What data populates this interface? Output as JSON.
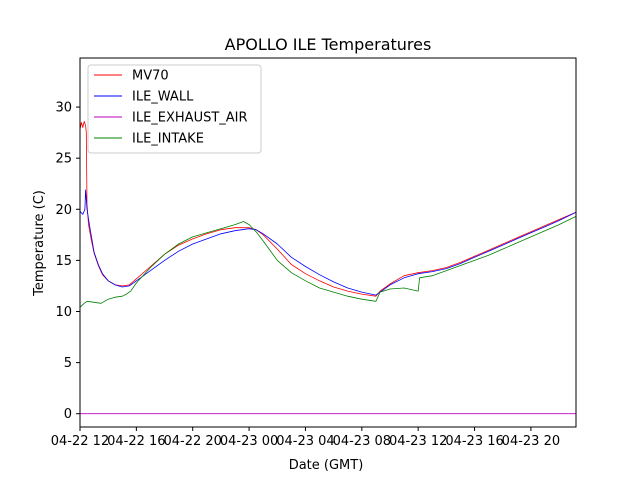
{
  "chart_data": {
    "type": "line",
    "title": "APOLLO ILE Temperatures",
    "xlabel": "Date (GMT)",
    "ylabel": "Temperature (C)",
    "x_unit": "hours since 04-22 12:00 GMT",
    "xlim": [
      0,
      35.2
    ],
    "ylim": [
      -1.3,
      34.8
    ],
    "grid": false,
    "legend_position": "upper-left",
    "x_ticks": [
      {
        "value": 0,
        "label": "04-22 12"
      },
      {
        "value": 4,
        "label": "04-22 16"
      },
      {
        "value": 8,
        "label": "04-22 20"
      },
      {
        "value": 12,
        "label": "04-23 00"
      },
      {
        "value": 16,
        "label": "04-23 04"
      },
      {
        "value": 20,
        "label": "04-23 08"
      },
      {
        "value": 24,
        "label": "04-23 12"
      },
      {
        "value": 28,
        "label": "04-23 16"
      },
      {
        "value": 32,
        "label": "04-23 20"
      }
    ],
    "y_ticks": [
      {
        "value": 0,
        "label": "0"
      },
      {
        "value": 5,
        "label": "5"
      },
      {
        "value": 10,
        "label": "10"
      },
      {
        "value": 15,
        "label": "15"
      },
      {
        "value": 20,
        "label": "20"
      },
      {
        "value": 25,
        "label": "25"
      },
      {
        "value": 30,
        "label": "30"
      }
    ],
    "series": [
      {
        "name": "MV70",
        "color": "#ff0000",
        "points": [
          [
            0,
            27.8
          ],
          [
            0.1,
            28.5
          ],
          [
            0.2,
            28.0
          ],
          [
            0.3,
            28.6
          ],
          [
            0.4,
            28.2
          ],
          [
            0.45,
            27.5
          ],
          [
            0.5,
            20.5
          ],
          [
            0.6,
            18.5
          ],
          [
            0.8,
            17.0
          ],
          [
            1.0,
            15.7
          ],
          [
            1.3,
            14.5
          ],
          [
            1.6,
            13.6
          ],
          [
            2,
            13.0
          ],
          [
            2.5,
            12.6
          ],
          [
            3,
            12.5
          ],
          [
            3.5,
            12.6
          ],
          [
            4,
            13.2
          ],
          [
            5,
            14.4
          ],
          [
            6,
            15.6
          ],
          [
            7,
            16.5
          ],
          [
            8,
            17.1
          ],
          [
            9,
            17.6
          ],
          [
            10,
            18.0
          ],
          [
            11,
            18.2
          ],
          [
            12,
            18.2
          ],
          [
            12.5,
            18.0
          ],
          [
            13,
            17.5
          ],
          [
            14,
            16.1
          ],
          [
            15,
            14.6
          ],
          [
            16,
            13.7
          ],
          [
            17,
            13.0
          ],
          [
            18,
            12.4
          ],
          [
            19,
            12.0
          ],
          [
            20,
            11.7
          ],
          [
            21,
            11.5
          ],
          [
            21.3,
            12.0
          ],
          [
            22,
            12.7
          ],
          [
            23,
            13.5
          ],
          [
            24,
            13.8
          ],
          [
            25,
            14.0
          ],
          [
            26,
            14.3
          ],
          [
            27,
            14.8
          ],
          [
            28,
            15.4
          ],
          [
            29,
            16.0
          ],
          [
            30,
            16.6
          ],
          [
            31,
            17.2
          ],
          [
            32,
            17.8
          ],
          [
            33,
            18.4
          ],
          [
            34,
            19.0
          ],
          [
            35.2,
            19.7
          ]
        ]
      },
      {
        "name": "ILE_WALL",
        "color": "#0000ff",
        "points": [
          [
            0,
            19.8
          ],
          [
            0.2,
            19.5
          ],
          [
            0.35,
            20.0
          ],
          [
            0.4,
            21.9
          ],
          [
            0.5,
            20.0
          ],
          [
            0.7,
            18.2
          ],
          [
            1.0,
            15.8
          ],
          [
            1.3,
            14.6
          ],
          [
            1.6,
            13.7
          ],
          [
            2,
            13.0
          ],
          [
            2.5,
            12.6
          ],
          [
            3,
            12.4
          ],
          [
            3.5,
            12.5
          ],
          [
            4,
            13.0
          ],
          [
            5,
            14.0
          ],
          [
            6,
            15.0
          ],
          [
            7,
            15.9
          ],
          [
            8,
            16.6
          ],
          [
            9,
            17.1
          ],
          [
            10,
            17.6
          ],
          [
            11,
            17.9
          ],
          [
            12,
            18.1
          ],
          [
            12.5,
            18.0
          ],
          [
            13,
            17.6
          ],
          [
            14,
            16.6
          ],
          [
            15,
            15.3
          ],
          [
            16,
            14.4
          ],
          [
            17,
            13.6
          ],
          [
            18,
            12.9
          ],
          [
            19,
            12.3
          ],
          [
            20,
            11.9
          ],
          [
            21,
            11.6
          ],
          [
            21.3,
            11.9
          ],
          [
            22,
            12.6
          ],
          [
            23,
            13.3
          ],
          [
            24,
            13.7
          ],
          [
            25,
            13.9
          ],
          [
            26,
            14.2
          ],
          [
            27,
            14.7
          ],
          [
            28,
            15.3
          ],
          [
            29,
            15.9
          ],
          [
            30,
            16.5
          ],
          [
            31,
            17.1
          ],
          [
            32,
            17.7
          ],
          [
            33,
            18.3
          ],
          [
            34,
            18.9
          ],
          [
            35.2,
            19.7
          ]
        ]
      },
      {
        "name": "ILE_EXHAUST_AIR",
        "color": "#bf00bf",
        "points": [
          [
            0,
            0
          ],
          [
            35.2,
            0
          ]
        ]
      },
      {
        "name": "ILE_INTAKE",
        "color": "#008000",
        "points": [
          [
            0,
            10.4
          ],
          [
            0.3,
            10.8
          ],
          [
            0.5,
            11.0
          ],
          [
            1,
            10.9
          ],
          [
            1.5,
            10.8
          ],
          [
            2,
            11.2
          ],
          [
            2.5,
            11.4
          ],
          [
            3,
            11.5
          ],
          [
            3.3,
            11.7
          ],
          [
            3.6,
            12.0
          ],
          [
            4,
            12.8
          ],
          [
            5,
            14.3
          ],
          [
            6,
            15.6
          ],
          [
            7,
            16.6
          ],
          [
            8,
            17.3
          ],
          [
            9,
            17.7
          ],
          [
            10,
            18.1
          ],
          [
            11,
            18.5
          ],
          [
            11.6,
            18.8
          ],
          [
            12,
            18.5
          ],
          [
            12.5,
            17.8
          ],
          [
            13,
            16.9
          ],
          [
            14,
            15.0
          ],
          [
            15,
            13.8
          ],
          [
            16,
            13.0
          ],
          [
            17,
            12.3
          ],
          [
            18,
            11.9
          ],
          [
            19,
            11.5
          ],
          [
            20,
            11.2
          ],
          [
            21,
            11.0
          ],
          [
            21.3,
            11.9
          ],
          [
            22,
            12.2
          ],
          [
            23,
            12.3
          ],
          [
            24,
            12.0
          ],
          [
            24.1,
            13.3
          ],
          [
            25,
            13.5
          ],
          [
            26,
            14.0
          ],
          [
            27,
            14.5
          ],
          [
            28,
            15.0
          ],
          [
            29,
            15.5
          ],
          [
            30,
            16.1
          ],
          [
            31,
            16.7
          ],
          [
            32,
            17.3
          ],
          [
            33,
            17.9
          ],
          [
            34,
            18.5
          ],
          [
            35.2,
            19.3
          ]
        ]
      }
    ]
  }
}
